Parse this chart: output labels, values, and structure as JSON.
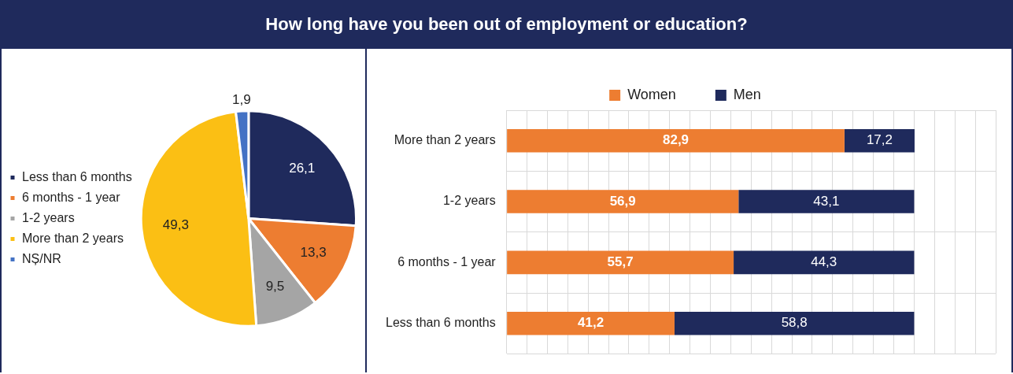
{
  "chart_data": [
    {
      "type": "pie",
      "title": "How long have you been out of employment or education?",
      "categories": [
        "Less than 6 months",
        "6 months - 1 year",
        "1-2 years",
        "More than 2 years",
        "NȘ/NR"
      ],
      "values": [
        26.1,
        13.3,
        9.5,
        49.3,
        1.9
      ],
      "value_labels": [
        "26,1",
        "13,3",
        "9,5",
        "49,3",
        "1,9"
      ],
      "colors": [
        "#1f2a5c",
        "#ed7d31",
        "#a5a5a5",
        "#fbbf14",
        "#4472c4"
      ],
      "legend": "left"
    },
    {
      "type": "bar",
      "orientation": "horizontal",
      "stacked": true,
      "relative": false,
      "categories": [
        "More than 2 years",
        "1-2 years",
        "6 months - 1 year",
        "Less than 6 months"
      ],
      "series": [
        {
          "name": "Women",
          "color": "#ed7d31",
          "values": [
            82.9,
            56.9,
            55.7,
            41.2
          ],
          "value_labels": [
            "82,9",
            "56,9",
            "55,7",
            "41,2"
          ]
        },
        {
          "name": "Men",
          "color": "#1f2a5c",
          "values": [
            17.2,
            43.1,
            44.3,
            58.8
          ],
          "value_labels": [
            "17,2",
            "43,1",
            "44,3",
            "58,8"
          ]
        }
      ],
      "xlim": [
        0,
        120
      ],
      "xticks": [
        {
          "value": 0,
          "label": null
        },
        {
          "value": 5,
          "label": null
        },
        {
          "value": 10,
          "label": null
        },
        {
          "value": 15,
          "label": null
        },
        {
          "value": 20,
          "label": null
        },
        {
          "value": 25,
          "label": null
        },
        {
          "value": 30,
          "label": null
        },
        {
          "value": 35,
          "label": null
        },
        {
          "value": 40,
          "label": null
        },
        {
          "value": 45,
          "label": null
        },
        {
          "value": 50,
          "label": null
        },
        {
          "value": 55,
          "label": null
        },
        {
          "value": 60,
          "label": null
        },
        {
          "value": 65,
          "label": null
        },
        {
          "value": 70,
          "label": null
        },
        {
          "value": 75,
          "label": null
        },
        {
          "value": 80,
          "label": null
        },
        {
          "value": 85,
          "label": null
        },
        {
          "value": 90,
          "label": null
        },
        {
          "value": 95,
          "label": null
        },
        {
          "value": 100,
          "label": null
        },
        {
          "value": 105,
          "label": null
        },
        {
          "value": 110,
          "label": null
        },
        {
          "value": 115,
          "label": null
        },
        {
          "value": 120,
          "label": null
        }
      ],
      "tick_labels": "y",
      "grid": true,
      "legend": "top"
    }
  ]
}
